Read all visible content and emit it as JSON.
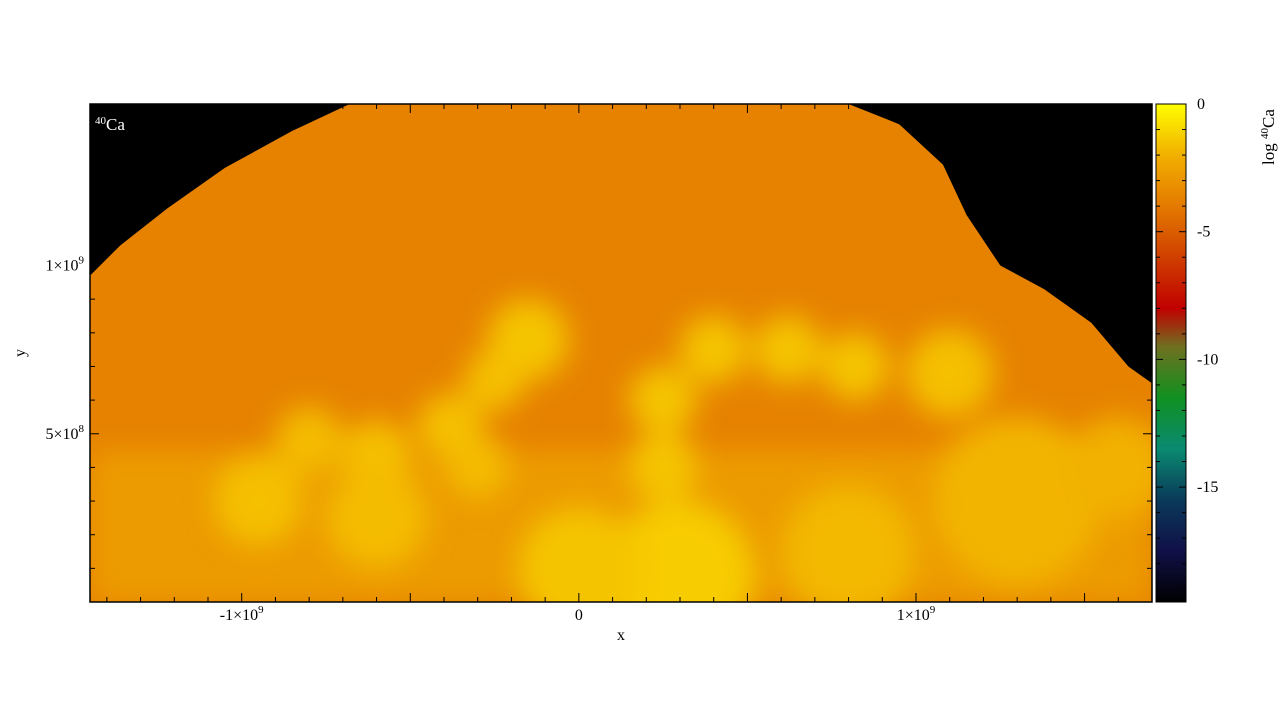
{
  "chart_data": {
    "type": "heatmap",
    "title": "",
    "panel_label": {
      "isotope": "40",
      "element": "Ca"
    },
    "xlabel": "x",
    "ylabel": "y",
    "xlim": [
      -1450000000.0,
      1700000000.0
    ],
    "ylim": [
      0,
      1480000000.0
    ],
    "x_ticks": [
      {
        "value": -1000000000.0,
        "mant": "-1",
        "exp": "9"
      },
      {
        "value": 0,
        "mant": "0",
        "exp": ""
      },
      {
        "value": 1000000000.0,
        "mant": "1",
        "exp": "9"
      }
    ],
    "y_ticks": [
      {
        "value": 500000000.0,
        "mant": "5",
        "exp": "8"
      },
      {
        "value": 1000000000.0,
        "mant": "1",
        "exp": "9"
      }
    ],
    "colorbar": {
      "label_prefix": "log ",
      "isotope": "40",
      "element": "Ca",
      "range": [
        -19.5,
        0
      ],
      "ticks": [
        {
          "value": 0,
          "label": "0"
        },
        {
          "value": -5,
          "label": "-5"
        },
        {
          "value": -10,
          "label": "-10"
        },
        {
          "value": -15,
          "label": "-15"
        }
      ],
      "colormap": [
        {
          "v": -19.5,
          "color": "#000000"
        },
        {
          "v": -17.5,
          "color": "#101048"
        },
        {
          "v": -15.5,
          "color": "#0a3a5a"
        },
        {
          "v": -13.5,
          "color": "#0a8a70"
        },
        {
          "v": -11.5,
          "color": "#109020"
        },
        {
          "v": -9.5,
          "color": "#707020"
        },
        {
          "v": -8.0,
          "color": "#c00000"
        },
        {
          "v": -6.0,
          "color": "#d04000"
        },
        {
          "v": -4.0,
          "color": "#e47a00"
        },
        {
          "v": -2.0,
          "color": "#f2b000"
        },
        {
          "v": 0,
          "color": "#ffff00"
        }
      ]
    },
    "background_color": "#000000",
    "field": {
      "ambient_log": -3.7,
      "bright_log": -1.4,
      "mid_log": -2.6,
      "outer_boundary": [
        {
          "x": -1450000000.0,
          "y": 970000000.0
        },
        {
          "x": -1360000000.0,
          "y": 1060000000.0
        },
        {
          "x": -1220000000.0,
          "y": 1170000000.0
        },
        {
          "x": -1050000000.0,
          "y": 1290000000.0
        },
        {
          "x": -850000000.0,
          "y": 1400000000.0
        },
        {
          "x": -680000000.0,
          "y": 1480000000.0
        },
        {
          "x": 800000000.0,
          "y": 1480000000.0
        },
        {
          "x": 950000000.0,
          "y": 1420000000.0
        },
        {
          "x": 1080000000.0,
          "y": 1300000000.0
        },
        {
          "x": 1150000000.0,
          "y": 1150000000.0
        },
        {
          "x": 1250000000.0,
          "y": 1000000000.0
        },
        {
          "x": 1380000000.0,
          "y": 930000000.0
        },
        {
          "x": 1520000000.0,
          "y": 830000000.0
        },
        {
          "x": 1630000000.0,
          "y": 700000000.0
        },
        {
          "x": 1700000000.0,
          "y": 650000000.0
        }
      ],
      "plumes": [
        {
          "x": -150000000.0,
          "y": 780000000.0,
          "r": 120000000.0,
          "log": -1.5
        },
        {
          "x": -250000000.0,
          "y": 660000000.0,
          "r": 90000000.0,
          "log": -1.6
        },
        {
          "x": -380000000.0,
          "y": 520000000.0,
          "r": 100000000.0,
          "log": -1.6
        },
        {
          "x": -300000000.0,
          "y": 400000000.0,
          "r": 90000000.0,
          "log": -1.7
        },
        {
          "x": -600000000.0,
          "y": 440000000.0,
          "r": 100000000.0,
          "log": -1.6
        },
        {
          "x": -800000000.0,
          "y": 480000000.0,
          "r": 100000000.0,
          "log": -1.7
        },
        {
          "x": -950000000.0,
          "y": 300000000.0,
          "r": 130000000.0,
          "log": -1.6
        },
        {
          "x": -600000000.0,
          "y": 250000000.0,
          "r": 150000000.0,
          "log": -1.7
        },
        {
          "x": 250000000.0,
          "y": 600000000.0,
          "r": 100000000.0,
          "log": -1.5
        },
        {
          "x": 250000000.0,
          "y": 400000000.0,
          "r": 100000000.0,
          "log": -1.5
        },
        {
          "x": 400000000.0,
          "y": 750000000.0,
          "r": 100000000.0,
          "log": -1.5
        },
        {
          "x": 620000000.0,
          "y": 750000000.0,
          "r": 100000000.0,
          "log": -1.5
        },
        {
          "x": 820000000.0,
          "y": 700000000.0,
          "r": 100000000.0,
          "log": -1.5
        },
        {
          "x": 1100000000.0,
          "y": 680000000.0,
          "r": 130000000.0,
          "log": -1.6
        },
        {
          "x": 300000000.0,
          "y": 80000000.0,
          "r": 220000000.0,
          "log": -1.3
        },
        {
          "x": 0.0,
          "y": 100000000.0,
          "r": 180000000.0,
          "log": -1.5
        },
        {
          "x": 800000000.0,
          "y": 150000000.0,
          "r": 200000000.0,
          "log": -1.8
        },
        {
          "x": 1300000000.0,
          "y": 300000000.0,
          "r": 250000000.0,
          "log": -1.9
        },
        {
          "x": 1600000000.0,
          "y": 400000000.0,
          "r": 150000000.0,
          "log": -2.0
        }
      ]
    }
  }
}
